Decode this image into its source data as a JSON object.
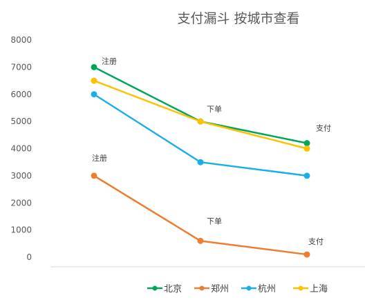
{
  "chart_data": {
    "type": "line",
    "title": "支付漏斗 按城市查看",
    "xlabel": "",
    "ylabel": "",
    "categories": [
      "注册",
      "下单",
      "支付"
    ],
    "ylim": [
      0,
      8000
    ],
    "yticks": [
      0,
      1000,
      2000,
      3000,
      4000,
      5000,
      6000,
      7000,
      8000
    ],
    "grid": false,
    "legend_position": "bottom",
    "series": [
      {
        "name": "北京",
        "color": "#00A65A",
        "values": [
          7000,
          5000,
          4200
        ]
      },
      {
        "name": "郑州",
        "color": "#ED7D31",
        "values": [
          3000,
          600,
          100
        ]
      },
      {
        "name": "杭州",
        "color": "#1AAFE6",
        "values": [
          6000,
          3500,
          3000
        ]
      },
      {
        "name": "上海",
        "color": "#FFC000",
        "values": [
          6500,
          5000,
          4000
        ]
      }
    ],
    "annotations": [
      {
        "text": "注册",
        "series": "北京",
        "category": "注册"
      },
      {
        "text": "下单",
        "series": "北京",
        "category": "下单"
      },
      {
        "text": "支付",
        "series": "北京",
        "category": "支付"
      },
      {
        "text": "注册",
        "series": "郑州",
        "category": "注册"
      },
      {
        "text": "下单",
        "series": "郑州",
        "category": "下单"
      },
      {
        "text": "支付",
        "series": "郑州",
        "category": "支付"
      }
    ]
  }
}
